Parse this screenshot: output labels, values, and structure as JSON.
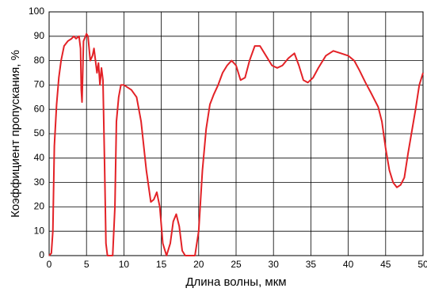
{
  "chart_data": {
    "type": "line",
    "xlabel": "Длина волны, мкм",
    "ylabel": "Коэффициент пропускания,  %",
    "x": [
      0,
      0.3,
      0.5,
      0.7,
      1.0,
      1.3,
      1.6,
      2.0,
      2.5,
      3.0,
      3.3,
      3.6,
      4.0,
      4.2,
      4.3,
      4.4,
      4.6,
      5.0,
      5.2,
      5.5,
      5.8,
      6.0,
      6.2,
      6.4,
      6.6,
      6.8,
      7.0,
      7.2,
      7.4,
      7.6,
      7.8,
      8.5,
      8.8,
      9.0,
      9.3,
      9.6,
      10.0,
      11.0,
      11.7,
      12.3,
      13.0,
      13.6,
      14.0,
      14.4,
      14.8,
      15.2,
      15.7,
      16.2,
      16.6,
      17.0,
      17.4,
      17.8,
      18.2,
      19.5,
      20.0,
      20.5,
      21.0,
      21.5,
      22.0,
      22.6,
      23.2,
      23.8,
      24.4,
      25.0,
      25.6,
      26.2,
      26.8,
      27.5,
      28.2,
      29.0,
      29.8,
      30.5,
      31.2,
      32.0,
      32.8,
      33.4,
      34.0,
      34.6,
      35.3,
      36.0,
      37.0,
      38.0,
      39.0,
      40.0,
      40.8,
      41.5,
      42.3,
      43.0,
      44.0,
      44.5,
      45.0,
      45.5,
      46.0,
      46.5,
      47.0,
      47.5,
      48.0,
      49.0,
      49.5,
      50.0
    ],
    "series": [
      {
        "color": "#e32227",
        "values": [
          0,
          1,
          10,
          45,
          62,
          73,
          80,
          86,
          88,
          89,
          90,
          89,
          90,
          85,
          68,
          63,
          88,
          91,
          90,
          80,
          82,
          85,
          80,
          75,
          79,
          70,
          77,
          72,
          40,
          5,
          0,
          0,
          20,
          55,
          65,
          70,
          70,
          68,
          65,
          55,
          35,
          22,
          23,
          26,
          20,
          5,
          0,
          5,
          14,
          17,
          12,
          2,
          0,
          0,
          10,
          35,
          52,
          62,
          66,
          70,
          75,
          78,
          80,
          78,
          72,
          73,
          80,
          86,
          86,
          82,
          78,
          77,
          78,
          81,
          83,
          78,
          72,
          71,
          73,
          77,
          82,
          84,
          83,
          82,
          80,
          76,
          71,
          67,
          61,
          55,
          44,
          35,
          30,
          28,
          29,
          32,
          42,
          60,
          70,
          75
        ]
      }
    ],
    "xlim": [
      0,
      50
    ],
    "ylim": [
      0,
      100
    ],
    "xticks": [
      0,
      5,
      10,
      15,
      20,
      25,
      30,
      35,
      40,
      45,
      50
    ],
    "yticks": [
      0,
      10,
      20,
      30,
      40,
      50,
      60,
      70,
      80,
      90,
      100
    ],
    "grid": true
  }
}
